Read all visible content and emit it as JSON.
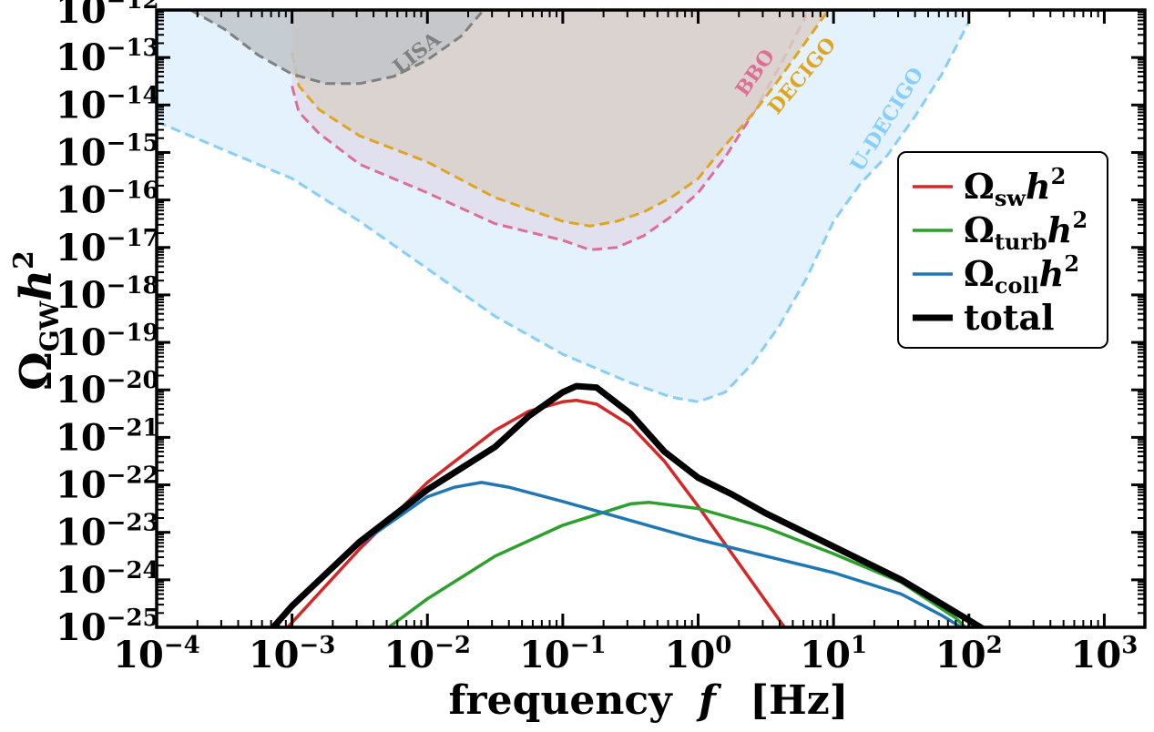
{
  "chart_data": {
    "type": "line",
    "title": "",
    "xlabel": "frequency",
    "xlabel_symbol": "f",
    "xlabel_unit": "[Hz]",
    "ylabel_main": "Ω",
    "ylabel_sub": "GW",
    "ylabel_h": "h",
    "ylabel_sup": "2",
    "xscale": "log",
    "yscale": "log",
    "xlim_log10": [
      -4,
      3.3
    ],
    "ylim_log10": [
      -25,
      -12
    ],
    "x_ticks": [
      {
        "base": "10",
        "exp": "−4",
        "v": -4
      },
      {
        "base": "10",
        "exp": "−3",
        "v": -3
      },
      {
        "base": "10",
        "exp": "−2",
        "v": -2
      },
      {
        "base": "10",
        "exp": "−1",
        "v": -1
      },
      {
        "base": "10",
        "exp": "0",
        "v": 0
      },
      {
        "base": "10",
        "exp": "1",
        "v": 1
      },
      {
        "base": "10",
        "exp": "2",
        "v": 2
      },
      {
        "base": "10",
        "exp": "3",
        "v": 3
      }
    ],
    "y_ticks": [
      {
        "base": "10",
        "exp": "−25",
        "v": -25
      },
      {
        "base": "10",
        "exp": "−24",
        "v": -24
      },
      {
        "base": "10",
        "exp": "−23",
        "v": -23
      },
      {
        "base": "10",
        "exp": "−22",
        "v": -22
      },
      {
        "base": "10",
        "exp": "−21",
        "v": -21
      },
      {
        "base": "10",
        "exp": "−20",
        "v": -20
      },
      {
        "base": "10",
        "exp": "−19",
        "v": -19
      },
      {
        "base": "10",
        "exp": "−18",
        "v": -18
      },
      {
        "base": "10",
        "exp": "−17",
        "v": -17
      },
      {
        "base": "10",
        "exp": "−16",
        "v": -16
      },
      {
        "base": "10",
        "exp": "−15",
        "v": -15
      },
      {
        "base": "10",
        "exp": "−14",
        "v": -14
      },
      {
        "base": "10",
        "exp": "−13",
        "v": -13
      },
      {
        "base": "10",
        "exp": "−12",
        "v": -12
      }
    ],
    "sensitivity_curves": [
      {
        "name": "U-DECIGO",
        "label": "U-DECIGO",
        "color": "#87cefa",
        "fill": "#e3f2fc",
        "points": [
          [
            -4,
            -14.35
          ],
          [
            -3.5,
            -14.95
          ],
          [
            -3,
            -15.55
          ],
          [
            -2.5,
            -16.45
          ],
          [
            -2,
            -17.45
          ],
          [
            -1.5,
            -18.45
          ],
          [
            -1,
            -19.25
          ],
          [
            -0.5,
            -19.85
          ],
          [
            -0.2,
            -20.15
          ],
          [
            0,
            -20.25
          ],
          [
            0.2,
            -20.05
          ],
          [
            0.4,
            -19.45
          ],
          [
            0.6,
            -18.65
          ],
          [
            0.8,
            -17.65
          ],
          [
            1,
            -16.45
          ],
          [
            1.2,
            -15.65
          ],
          [
            1.4,
            -15.05
          ],
          [
            1.6,
            -14.25
          ],
          [
            1.8,
            -13.35
          ],
          [
            2,
            -12.25
          ]
        ]
      },
      {
        "name": "BBO",
        "label": "BBO",
        "color": "#de6e96",
        "fill": "#e0dcea",
        "points": [
          [
            -3,
            -13.6
          ],
          [
            -2.95,
            -14.15
          ],
          [
            -2.8,
            -14.6
          ],
          [
            -2.5,
            -15.25
          ],
          [
            -2,
            -15.85
          ],
          [
            -1.5,
            -16.5
          ],
          [
            -1,
            -16.85
          ],
          [
            -0.8,
            -17.05
          ],
          [
            -0.6,
            -17.0
          ],
          [
            -0.4,
            -16.75
          ],
          [
            -0.2,
            -16.35
          ],
          [
            0,
            -15.85
          ],
          [
            0.2,
            -15.1
          ],
          [
            0.4,
            -14.2
          ],
          [
            0.6,
            -13.2
          ],
          [
            0.8,
            -12.1
          ]
        ]
      },
      {
        "name": "DECIGO",
        "label": "DECIGO",
        "color": "#e0a520",
        "fill": "#d9cfc8",
        "points": [
          [
            -3,
            -12.9
          ],
          [
            -2.95,
            -13.6
          ],
          [
            -2.8,
            -14.1
          ],
          [
            -2.5,
            -14.65
          ],
          [
            -2,
            -15.2
          ],
          [
            -1.5,
            -15.95
          ],
          [
            -1,
            -16.45
          ],
          [
            -0.8,
            -16.55
          ],
          [
            -0.6,
            -16.45
          ],
          [
            -0.4,
            -16.25
          ],
          [
            -0.2,
            -15.95
          ],
          [
            0,
            -15.55
          ],
          [
            0.2,
            -14.85
          ],
          [
            0.4,
            -14.2
          ],
          [
            0.6,
            -13.45
          ],
          [
            0.8,
            -12.65
          ],
          [
            0.95,
            -12.05
          ]
        ]
      },
      {
        "name": "LISA",
        "label": "LISA",
        "color": "#808080",
        "fill": "#c0c4c8",
        "points": [
          [
            -3.75,
            -12.0
          ],
          [
            -3.5,
            -12.4
          ],
          [
            -3.25,
            -12.95
          ],
          [
            -3,
            -13.35
          ],
          [
            -2.75,
            -13.55
          ],
          [
            -2.5,
            -13.55
          ],
          [
            -2.25,
            -13.4
          ],
          [
            -2,
            -13.05
          ],
          [
            -1.75,
            -12.55
          ],
          [
            -1.6,
            -12.05
          ]
        ]
      }
    ],
    "series": [
      {
        "name": "sw",
        "legend_main": "Ω",
        "legend_sub": "sw",
        "legend_h": "h",
        "legend_sup": "2",
        "color": "#d62728",
        "width": 3.5,
        "points": [
          [
            -3.1,
            -25.2
          ],
          [
            -3,
            -24.9
          ],
          [
            -2.5,
            -23.35
          ],
          [
            -2,
            -21.95
          ],
          [
            -1.5,
            -20.85
          ],
          [
            -1.25,
            -20.45
          ],
          [
            -1,
            -20.25
          ],
          [
            -0.9,
            -20.22
          ],
          [
            -0.75,
            -20.3
          ],
          [
            -0.5,
            -20.75
          ],
          [
            -0.25,
            -21.5
          ],
          [
            0,
            -22.45
          ],
          [
            0.25,
            -23.45
          ],
          [
            0.5,
            -24.45
          ],
          [
            0.7,
            -25.25
          ]
        ]
      },
      {
        "name": "turb",
        "legend_main": "Ω",
        "legend_sub": "turb",
        "legend_h": "h",
        "legend_sup": "2",
        "color": "#2ca02c",
        "width": 3.5,
        "points": [
          [
            -2.38,
            -25.2
          ],
          [
            -2,
            -24.4
          ],
          [
            -1.5,
            -23.5
          ],
          [
            -1,
            -22.85
          ],
          [
            -0.5,
            -22.4
          ],
          [
            -0.36,
            -22.37
          ],
          [
            0,
            -22.5
          ],
          [
            0.5,
            -22.9
          ],
          [
            1,
            -23.45
          ],
          [
            1.5,
            -24.05
          ],
          [
            1.9,
            -24.8
          ],
          [
            2.05,
            -25.2
          ]
        ]
      },
      {
        "name": "coll",
        "legend_main": "Ω",
        "legend_sub": "coll",
        "legend_h": "h",
        "legend_sup": "2",
        "color": "#1f77b4",
        "width": 3.5,
        "points": [
          [
            -3.2,
            -25.2
          ],
          [
            -3,
            -24.55
          ],
          [
            -2.5,
            -23.25
          ],
          [
            -2,
            -22.25
          ],
          [
            -1.8,
            -22.05
          ],
          [
            -1.6,
            -21.95
          ],
          [
            -1.4,
            -22.05
          ],
          [
            -1,
            -22.35
          ],
          [
            -0.5,
            -22.75
          ],
          [
            0,
            -23.15
          ],
          [
            0.5,
            -23.5
          ],
          [
            1,
            -23.85
          ],
          [
            1.5,
            -24.3
          ],
          [
            1.8,
            -24.75
          ],
          [
            2.0,
            -25.1
          ]
        ]
      },
      {
        "name": "total",
        "legend_main": "total",
        "legend_sub": "",
        "legend_h": "",
        "legend_sup": "",
        "color": "#000000",
        "width": 7,
        "points": [
          [
            -3.2,
            -25.2
          ],
          [
            -3,
            -24.55
          ],
          [
            -2.5,
            -23.2
          ],
          [
            -2,
            -22.1
          ],
          [
            -1.5,
            -21.2
          ],
          [
            -1.25,
            -20.55
          ],
          [
            -1,
            -20.05
          ],
          [
            -0.9,
            -19.92
          ],
          [
            -0.75,
            -19.95
          ],
          [
            -0.5,
            -20.5
          ],
          [
            -0.25,
            -21.3
          ],
          [
            0,
            -21.85
          ],
          [
            0.25,
            -22.2
          ],
          [
            0.5,
            -22.6
          ],
          [
            1,
            -23.3
          ],
          [
            1.5,
            -24.0
          ],
          [
            2,
            -24.85
          ],
          [
            2.2,
            -25.2
          ]
        ]
      }
    ]
  }
}
